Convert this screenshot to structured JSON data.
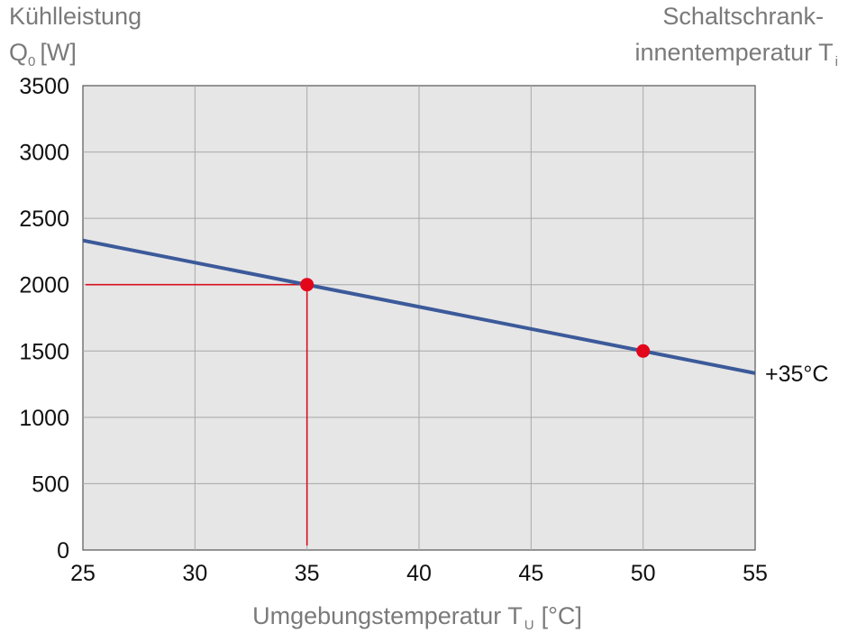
{
  "chart_data": {
    "type": "line",
    "y_title": {
      "line1": "Kühlleistung",
      "symbol": "Q",
      "subscript": "0",
      "unit": "[W]"
    },
    "right_title": {
      "line1": "Schaltschrank-",
      "line2": "innentemperatur T",
      "subscript": "i"
    },
    "x_title": {
      "text": "Umgebungstemperatur T",
      "subscript": "U",
      "unit": "[°C]"
    },
    "xlim": [
      25,
      55
    ],
    "ylim": [
      0,
      3500
    ],
    "x_ticks": [
      25,
      30,
      35,
      40,
      45,
      50,
      55
    ],
    "y_ticks": [
      0,
      500,
      1000,
      1500,
      2000,
      2500,
      3000,
      3500
    ],
    "grid": true,
    "series": [
      {
        "name": "+35°C",
        "x": [
          25,
          55
        ],
        "y": [
          2333,
          1333
        ],
        "color": "#3c5a9a"
      }
    ],
    "markers": [
      {
        "x": 35,
        "y": 2000,
        "color": "#e3061b"
      },
      {
        "x": 50,
        "y": 1500,
        "color": "#e3061b"
      }
    ],
    "guide_lines": [
      {
        "x": 35,
        "y": 2000,
        "color": "#d7101e"
      }
    ],
    "colors": {
      "plot_background": "#e6e6e6",
      "grid": "#a8a8a8",
      "axis_title": "#7a7a7a"
    }
  }
}
